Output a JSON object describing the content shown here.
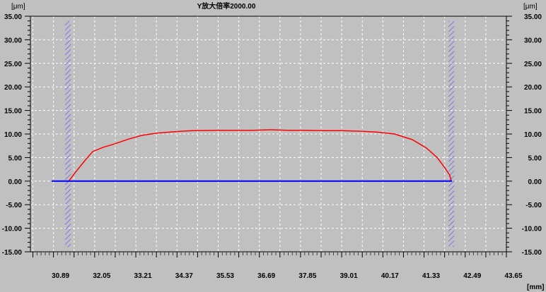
{
  "chart_data": {
    "type": "line",
    "title": "Y放大倍率2000.00",
    "ylabel_left": "[μm]",
    "ylabel_right": "[μm]",
    "xlabel": "[mm]",
    "xlim": [
      30.24,
      43.65
    ],
    "ylim": [
      -15,
      35
    ],
    "x_ticks": [
      "30.89",
      "32.05",
      "33.21",
      "34.37",
      "35.53",
      "36.69",
      "37.85",
      "39.01",
      "40.17",
      "41.33",
      "42.49",
      "43.65"
    ],
    "y_ticks": [
      "35.00",
      "30.00",
      "25.00",
      "20.00",
      "15.00",
      "10.00",
      "5.00",
      "0.00",
      "-5.00",
      "-10.00",
      "-15.00"
    ],
    "grid": true,
    "colors": {
      "background": "#c0c0c0",
      "grid": "#ffffff",
      "profile": "#ff0000",
      "baseline": "#0000ff",
      "hatch": "#4a4aff"
    },
    "hatch_regions": [
      {
        "x": [
          31.22,
          31.38
        ],
        "y": [
          -14,
          34
        ]
      },
      {
        "x": [
          42.02,
          42.18
        ],
        "y": [
          -14,
          34
        ]
      }
    ],
    "series": [
      {
        "color": "#ff0000",
        "x": [
          31.32,
          31.5,
          31.8,
          32.0,
          32.3,
          32.57,
          33.0,
          33.37,
          33.8,
          34.3,
          34.8,
          35.5,
          36.0,
          36.5,
          37.0,
          37.5,
          38.0,
          38.5,
          39.0,
          39.5,
          40.0,
          40.5,
          41.0,
          41.4,
          41.7,
          41.9,
          42.05,
          42.1
        ],
        "y": [
          0,
          1.8,
          4.6,
          6.3,
          7.2,
          7.8,
          8.9,
          9.7,
          10.2,
          10.5,
          10.7,
          10.8,
          10.8,
          10.8,
          10.9,
          10.8,
          10.8,
          10.7,
          10.7,
          10.6,
          10.4,
          10.0,
          8.8,
          7.0,
          5.0,
          3.0,
          1.3,
          0
        ]
      },
      {
        "color": "#0000ff",
        "x": [
          30.84,
          42.12
        ],
        "y": [
          0,
          0
        ]
      }
    ]
  }
}
